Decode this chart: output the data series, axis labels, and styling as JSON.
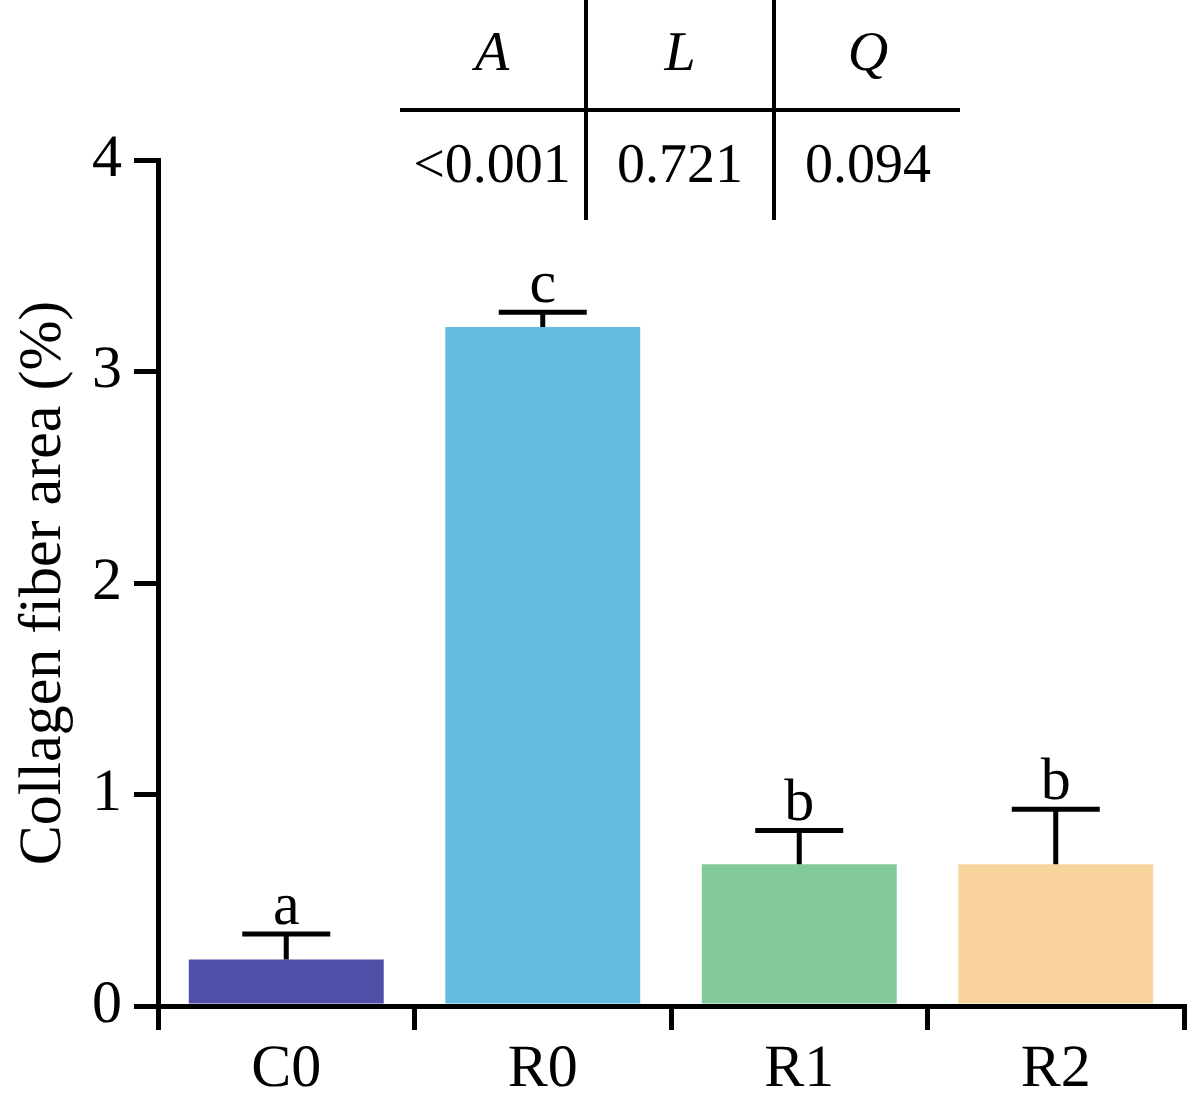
{
  "chart_data": {
    "type": "bar",
    "ylabel": "Collagen fiber area (%)",
    "categories": [
      "C0",
      "R0",
      "R1",
      "R2"
    ],
    "values": [
      0.22,
      3.21,
      0.67,
      0.67
    ],
    "colors": [
      "#4f4fa8",
      "#63bde0",
      "#84c99a",
      "#f8d49c"
    ],
    "errors": [
      [
        0.22,
        0.34
      ],
      [
        3.21,
        3.28
      ],
      [
        0.67,
        0.83
      ],
      [
        0.67,
        0.93
      ]
    ],
    "ylim": [
      0,
      4
    ],
    "yticks": [
      0,
      1,
      2,
      3,
      4
    ],
    "grid": false,
    "legend": false,
    "annotations": [
      "a",
      "c",
      "b",
      "b",
      "A",
      "L",
      "Q",
      "<0.001",
      "0.721",
      "0.094"
    ]
  }
}
